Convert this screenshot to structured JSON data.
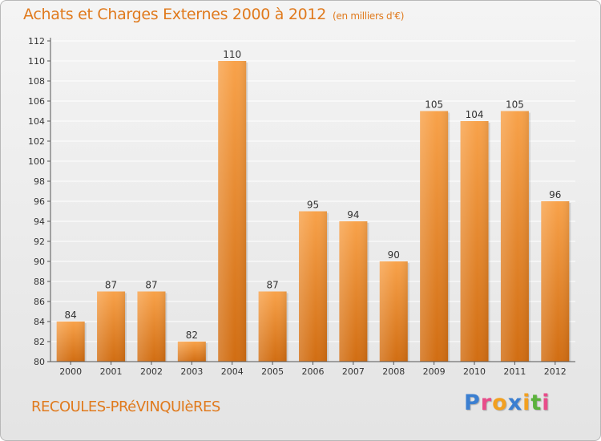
{
  "header": {
    "title": "Achats et Charges Externes 2000 à 2012",
    "unit": "(en milliers d'€)"
  },
  "footer": {
    "commune": "RECOULES-PRéVINQUIèRES",
    "brand_letters": [
      "P",
      "r",
      "o",
      "x",
      "i",
      "t",
      "i"
    ],
    "brand_colors": [
      "#3b7fd1",
      "#e84c8a",
      "#f2a020",
      "#3b7fd1",
      "#f2a020",
      "#5bb23c",
      "#e84c8a"
    ]
  },
  "colors": {
    "bar_top": "#f8a24a",
    "bar_bottom": "#d16d12",
    "grid": "#ffffff",
    "axis_text": "#333333",
    "title": "#e07a1d"
  },
  "chart_data": {
    "type": "bar",
    "categories": [
      "2000",
      "2001",
      "2002",
      "2003",
      "2004",
      "2005",
      "2006",
      "2007",
      "2008",
      "2009",
      "2010",
      "2011",
      "2012"
    ],
    "values": [
      84,
      87,
      87,
      82,
      110,
      87,
      95,
      94,
      90,
      105,
      104,
      105,
      96
    ],
    "data_labels": [
      "84",
      "87",
      "87",
      "82",
      "110",
      "87",
      "95",
      "94",
      "90",
      "105",
      "104",
      "105",
      "96"
    ],
    "title": "Achats et Charges Externes 2000 à 2012",
    "xlabel": "",
    "ylabel": "",
    "ylim": [
      80,
      112
    ],
    "yticks": [
      80,
      82,
      84,
      86,
      88,
      90,
      92,
      94,
      96,
      98,
      100,
      102,
      104,
      106,
      108,
      110,
      112
    ],
    "grid": true,
    "legend": "none"
  }
}
